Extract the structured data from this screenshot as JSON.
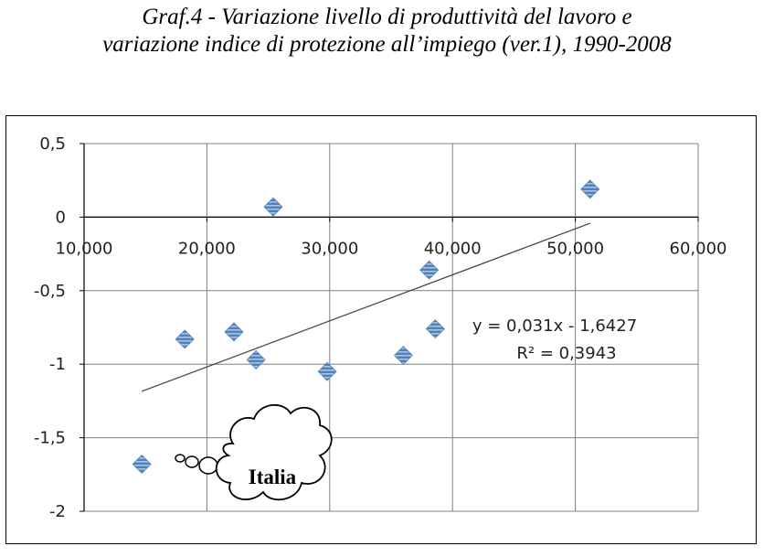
{
  "title": {
    "line1": "Graf.4 - Variazione livello di produttività del lavoro e",
    "line2": "variazione indice di protezione all’impiego (ver.1), 1990-2008"
  },
  "chart_data": {
    "type": "scatter",
    "xlim": [
      10000,
      60000
    ],
    "ylim": [
      -2,
      0.5
    ],
    "x_ticks": [
      "10,000",
      "20,000",
      "30,000",
      "40,000",
      "50,000",
      "60,000"
    ],
    "y_ticks": [
      "0,5",
      "0",
      "-0,5",
      "-1",
      "-1,5",
      "-2"
    ],
    "grid": true,
    "points": [
      {
        "x": 14700,
        "y": -1.68
      },
      {
        "x": 18200,
        "y": -0.83
      },
      {
        "x": 22200,
        "y": -0.78
      },
      {
        "x": 24000,
        "y": -0.97
      },
      {
        "x": 25400,
        "y": 0.07
      },
      {
        "x": 29800,
        "y": -1.05
      },
      {
        "x": 36000,
        "y": -0.94
      },
      {
        "x": 38100,
        "y": -0.36
      },
      {
        "x": 38600,
        "y": -0.76
      },
      {
        "x": 51200,
        "y": 0.19
      }
    ],
    "trendline": {
      "x_range": [
        14700,
        51200
      ],
      "equation": "y = 0,031x - 1,6427",
      "r_squared": "R² = 0,3943"
    },
    "annotation": {
      "label": "Italia",
      "x": 14700,
      "y": -1.68
    }
  },
  "colors": {
    "marker_fill": "#4f81bd",
    "marker_stripe": "#a9c3e5",
    "grid": "#808080",
    "axis": "#000000",
    "trend": "#404040"
  }
}
